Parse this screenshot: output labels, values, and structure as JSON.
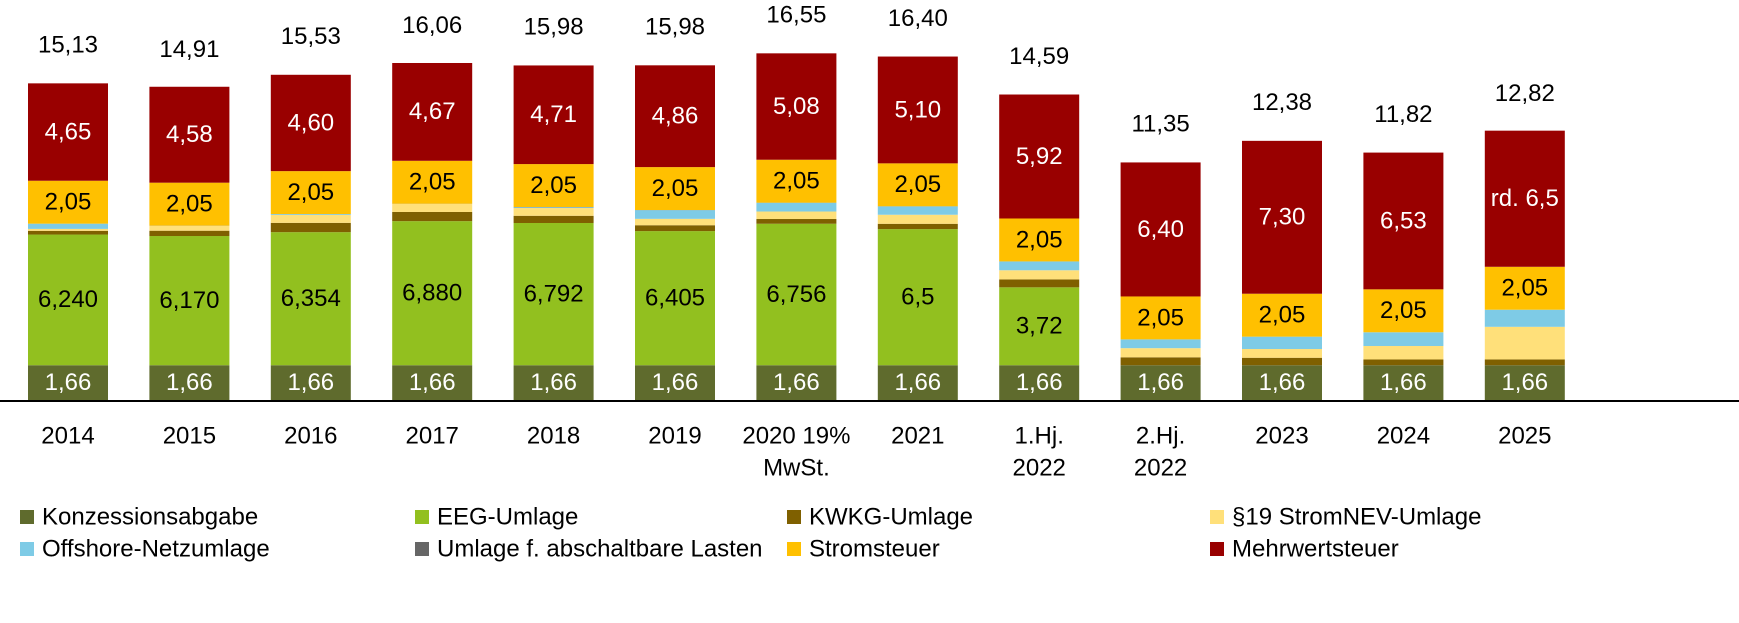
{
  "chart_data": {
    "type": "stacked_bar",
    "categories": [
      [
        "2014"
      ],
      [
        "2015"
      ],
      [
        "2016"
      ],
      [
        "2017"
      ],
      [
        "2018"
      ],
      [
        "2019"
      ],
      [
        "2020 19%",
        "MwSt."
      ],
      [
        "2021"
      ],
      [
        "1.Hj.",
        "2022"
      ],
      [
        "2.Hj.",
        "2022"
      ],
      [
        "2023"
      ],
      [
        "2024"
      ],
      [
        "2025"
      ]
    ],
    "ylim": [
      0,
      19.1
    ],
    "totals": [
      15.13,
      14.91,
      15.53,
      16.06,
      15.98,
      15.98,
      16.55,
      16.4,
      14.59,
      11.35,
      12.38,
      11.82,
      12.82
    ],
    "total_labels": [
      "15,13",
      "14,91",
      "15,53",
      "16,06",
      "15,98",
      "15,98",
      "16,55",
      "16,40",
      "14,59",
      "11,35",
      "12,38",
      "11,82",
      "12,82"
    ],
    "legend_columns": 4,
    "series": [
      {
        "name": "Konzessionsabgabe",
        "color": "#5f6b2d",
        "values": [
          1.66,
          1.66,
          1.66,
          1.66,
          1.66,
          1.66,
          1.66,
          1.66,
          1.66,
          1.66,
          1.66,
          1.66,
          1.66
        ],
        "value_labels": [
          "1,66",
          "1,66",
          "1,66",
          "1,66",
          "1,66",
          "1,66",
          "1,66",
          "1,66",
          "1,66",
          "1,66",
          "1,66",
          "1,66",
          "1,66"
        ]
      },
      {
        "name": "EEG-Umlage",
        "color": "#92c01f",
        "values": [
          6.24,
          6.17,
          6.354,
          6.88,
          6.792,
          6.405,
          6.756,
          6.5,
          3.72,
          0,
          0,
          0,
          0
        ],
        "value_labels": [
          "6,240",
          "6,170",
          "6,354",
          "6,880",
          "6,792",
          "6,405",
          "6,756",
          "6,5",
          "3,72",
          null,
          null,
          null,
          null
        ]
      },
      {
        "name": "KWKG-Umlage",
        "color": "#7f6000",
        "values": [
          0.178,
          0.254,
          0.445,
          0.438,
          0.345,
          0.28,
          0.226,
          0.254,
          0.378,
          0.378,
          0.357,
          0.275,
          0.277
        ]
      },
      {
        "name": "§19 StromNEV-Umlage",
        "color": "#ffe07a",
        "values": [
          0.092,
          0.237,
          0.378,
          0.388,
          0.37,
          0.305,
          0.358,
          0.432,
          0.437,
          0.437,
          0.417,
          0.643,
          1.558
        ]
      },
      {
        "name": "Offshore-Netzumlage",
        "color": "#7ecbe6",
        "values": [
          0.25,
          0,
          0.04,
          0,
          0.037,
          0.416,
          0.416,
          0.395,
          0.419,
          0.419,
          0.591,
          0.656,
          0.816
        ]
      },
      {
        "name": "Umlage f. abschaltbare Lasten",
        "color": "#666666",
        "values": [
          0,
          0.006,
          0.002,
          0.006,
          0.011,
          0.005,
          0.007,
          0.009,
          0.003,
          0,
          0,
          0,
          0
        ]
      },
      {
        "name": "Stromsteuer",
        "color": "#ffc000",
        "values": [
          2.05,
          2.05,
          2.05,
          2.05,
          2.05,
          2.05,
          2.05,
          2.05,
          2.05,
          2.05,
          2.05,
          2.05,
          2.05
        ],
        "value_labels": [
          "2,05",
          "2,05",
          "2,05",
          "2,05",
          "2,05",
          "2,05",
          "2,05",
          "2,05",
          "2,05",
          "2,05",
          "2,05",
          "2,05",
          "2,05"
        ]
      },
      {
        "name": "Mehrwertsteuer",
        "color": "#990000",
        "values": [
          4.65,
          4.58,
          4.6,
          4.67,
          4.71,
          4.86,
          5.08,
          5.1,
          5.92,
          6.4,
          7.3,
          6.53,
          6.5
        ],
        "value_labels": [
          "4,65",
          "4,58",
          "4,60",
          "4,67",
          "4,71",
          "4,86",
          "5,08",
          "5,10",
          "5,92",
          "6,40",
          "7,30",
          "6,53",
          "rd. 6,5"
        ]
      }
    ]
  }
}
